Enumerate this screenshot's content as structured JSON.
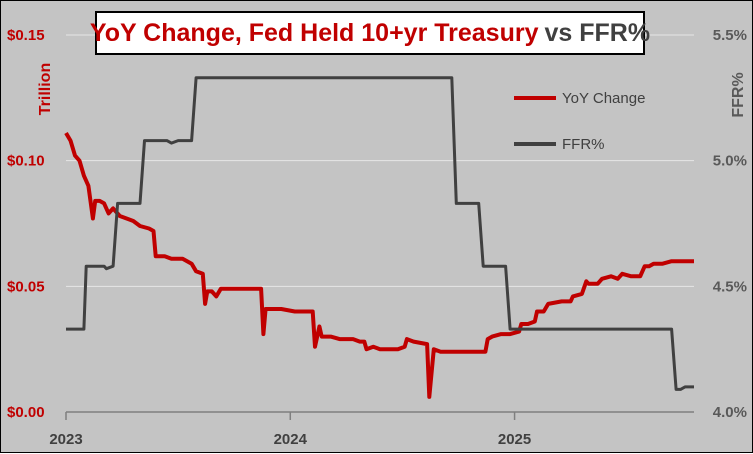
{
  "chart_data": {
    "type": "line",
    "title_main": "YoY Change, Fed Held 10+yr Treasury",
    "title_suffix": "vs FFR%",
    "ylabel_left": "Trillion",
    "ylabel_right": "FFR%",
    "ylim_left": [
      0,
      0.15
    ],
    "ylim_right": [
      4.0,
      5.5
    ],
    "xlim": [
      2023.0,
      2025.8
    ],
    "left_ticks": [
      {
        "value": 0.0,
        "label": "$0.00"
      },
      {
        "value": 0.05,
        "label": "$0.05"
      },
      {
        "value": 0.1,
        "label": "$0.10"
      },
      {
        "value": 0.15,
        "label": "$0.15"
      }
    ],
    "right_ticks": [
      {
        "value": 4.0,
        "label": "4.0%"
      },
      {
        "value": 4.5,
        "label": "4.5%"
      },
      {
        "value": 5.0,
        "label": "5.0%"
      },
      {
        "value": 5.5,
        "label": "5.5%"
      }
    ],
    "x_ticks": [
      {
        "value": 2023,
        "label": "2023"
      },
      {
        "value": 2024,
        "label": "2024"
      },
      {
        "value": 2025,
        "label": "2025"
      }
    ],
    "grid": true,
    "legend": [
      {
        "name": "YoY Change",
        "color": "#c00000"
      },
      {
        "name": "FFR%",
        "color": "#404040"
      }
    ],
    "series": [
      {
        "name": "YoY Change",
        "axis": "left",
        "color": "#c00000",
        "points": [
          [
            2023.0,
            0.111
          ],
          [
            2023.02,
            0.108
          ],
          [
            2023.04,
            0.102
          ],
          [
            2023.06,
            0.1
          ],
          [
            2023.08,
            0.094
          ],
          [
            2023.1,
            0.09
          ],
          [
            2023.12,
            0.077
          ],
          [
            2023.13,
            0.084
          ],
          [
            2023.15,
            0.084
          ],
          [
            2023.17,
            0.083
          ],
          [
            2023.19,
            0.079
          ],
          [
            2023.21,
            0.081
          ],
          [
            2023.24,
            0.078
          ],
          [
            2023.27,
            0.077
          ],
          [
            2023.3,
            0.076
          ],
          [
            2023.33,
            0.074
          ],
          [
            2023.37,
            0.073
          ],
          [
            2023.39,
            0.072
          ],
          [
            2023.4,
            0.062
          ],
          [
            2023.44,
            0.062
          ],
          [
            2023.47,
            0.061
          ],
          [
            2023.52,
            0.061
          ],
          [
            2023.56,
            0.059
          ],
          [
            2023.58,
            0.056
          ],
          [
            2023.61,
            0.055
          ],
          [
            2023.62,
            0.043
          ],
          [
            2023.63,
            0.048
          ],
          [
            2023.65,
            0.048
          ],
          [
            2023.67,
            0.046
          ],
          [
            2023.69,
            0.049
          ],
          [
            2023.74,
            0.049
          ],
          [
            2023.8,
            0.049
          ],
          [
            2023.85,
            0.049
          ],
          [
            2023.87,
            0.049
          ],
          [
            2023.88,
            0.031
          ],
          [
            2023.89,
            0.041
          ],
          [
            2023.91,
            0.041
          ],
          [
            2023.96,
            0.041
          ],
          [
            2024.02,
            0.04
          ],
          [
            2024.08,
            0.04
          ],
          [
            2024.1,
            0.04
          ],
          [
            2024.11,
            0.026
          ],
          [
            2024.13,
            0.034
          ],
          [
            2024.14,
            0.03
          ],
          [
            2024.18,
            0.03
          ],
          [
            2024.22,
            0.029
          ],
          [
            2024.28,
            0.029
          ],
          [
            2024.31,
            0.028
          ],
          [
            2024.33,
            0.028
          ],
          [
            2024.34,
            0.025
          ],
          [
            2024.37,
            0.026
          ],
          [
            2024.4,
            0.025
          ],
          [
            2024.44,
            0.025
          ],
          [
            2024.48,
            0.025
          ],
          [
            2024.51,
            0.026
          ],
          [
            2024.52,
            0.029
          ],
          [
            2024.55,
            0.028
          ],
          [
            2024.61,
            0.027
          ],
          [
            2024.62,
            0.006
          ],
          [
            2024.64,
            0.025
          ],
          [
            2024.67,
            0.024
          ],
          [
            2024.72,
            0.024
          ],
          [
            2024.78,
            0.024
          ],
          [
            2024.82,
            0.024
          ],
          [
            2024.87,
            0.024
          ],
          [
            2024.88,
            0.029
          ],
          [
            2024.9,
            0.03
          ],
          [
            2024.94,
            0.031
          ],
          [
            2024.98,
            0.031
          ],
          [
            2025.02,
            0.032
          ],
          [
            2025.03,
            0.035
          ],
          [
            2025.06,
            0.035
          ],
          [
            2025.09,
            0.036
          ],
          [
            2025.1,
            0.04
          ],
          [
            2025.13,
            0.04
          ],
          [
            2025.15,
            0.043
          ],
          [
            2025.21,
            0.044
          ],
          [
            2025.25,
            0.044
          ],
          [
            2025.26,
            0.046
          ],
          [
            2025.3,
            0.047
          ],
          [
            2025.32,
            0.052
          ],
          [
            2025.33,
            0.051
          ],
          [
            2025.37,
            0.051
          ],
          [
            2025.39,
            0.053
          ],
          [
            2025.43,
            0.054
          ],
          [
            2025.46,
            0.053
          ],
          [
            2025.48,
            0.055
          ],
          [
            2025.52,
            0.054
          ],
          [
            2025.56,
            0.054
          ],
          [
            2025.58,
            0.058
          ],
          [
            2025.6,
            0.058
          ],
          [
            2025.62,
            0.059
          ],
          [
            2025.66,
            0.059
          ],
          [
            2025.7,
            0.06
          ],
          [
            2025.74,
            0.06
          ],
          [
            2025.8,
            0.06
          ]
        ]
      },
      {
        "name": "FFR%",
        "axis": "right",
        "color": "#404040",
        "points": [
          [
            2023.0,
            4.33
          ],
          [
            2023.08,
            4.33
          ],
          [
            2023.09,
            4.58
          ],
          [
            2023.17,
            4.58
          ],
          [
            2023.18,
            4.57
          ],
          [
            2023.21,
            4.58
          ],
          [
            2023.23,
            4.83
          ],
          [
            2023.33,
            4.83
          ],
          [
            2023.35,
            5.08
          ],
          [
            2023.45,
            5.08
          ],
          [
            2023.47,
            5.07
          ],
          [
            2023.5,
            5.08
          ],
          [
            2023.56,
            5.08
          ],
          [
            2023.58,
            5.33
          ],
          [
            2024.72,
            5.33
          ],
          [
            2024.74,
            4.83
          ],
          [
            2024.84,
            4.83
          ],
          [
            2024.86,
            4.58
          ],
          [
            2024.96,
            4.58
          ],
          [
            2024.98,
            4.33
          ],
          [
            2025.7,
            4.33
          ],
          [
            2025.72,
            4.09
          ],
          [
            2025.74,
            4.09
          ],
          [
            2025.76,
            4.1
          ],
          [
            2025.8,
            4.1
          ]
        ]
      }
    ]
  }
}
